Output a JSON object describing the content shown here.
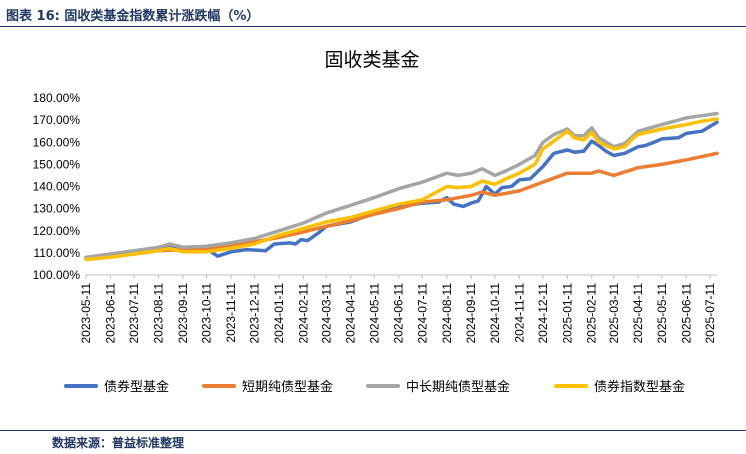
{
  "header": {
    "figure_title": "图表 16:   固收类基金指数累计涨跌幅（%）"
  },
  "footer": {
    "source": "数据来源：普益标准整理"
  },
  "chart_data": {
    "type": "line",
    "title": "固收类基金",
    "xlabel": "",
    "ylabel": "",
    "ylim": [
      100,
      180
    ],
    "y_ticks": [
      "100.00%",
      "110.00%",
      "120.00%",
      "130.00%",
      "140.00%",
      "150.00%",
      "160.00%",
      "170.00%",
      "180.00%"
    ],
    "x_start": "2023-05-11",
    "x_end": "2025-07-20",
    "x_ticks": [
      "2023-05-11",
      "2023-06-11",
      "2023-07-11",
      "2023-08-11",
      "2023-09-11",
      "2023-10-11",
      "2023-11-11",
      "2023-12-11",
      "2024-01-11",
      "2024-02-11",
      "2024-03-11",
      "2024-04-11",
      "2024-05-11",
      "2024-06-11",
      "2024-07-11",
      "2024-08-11",
      "2024-09-11",
      "2024-10-11",
      "2024-11-11",
      "2024-12-11",
      "2025-01-11",
      "2025-02-11",
      "2025-03-11",
      "2025-04-11",
      "2025-05-11",
      "2025-06-11",
      "2025-07-11"
    ],
    "legend_position": "bottom",
    "grid": false,
    "series": [
      {
        "name": "债券型基金",
        "color": "#4472c4",
        "points": [
          [
            "2023-05-11",
            107.5
          ],
          [
            "2023-06-11",
            108.5
          ],
          [
            "2023-07-11",
            109.5
          ],
          [
            "2023-08-11",
            111
          ],
          [
            "2023-08-25",
            113
          ],
          [
            "2023-09-11",
            110.5
          ],
          [
            "2023-10-01",
            111
          ],
          [
            "2023-10-15",
            111
          ],
          [
            "2023-10-25",
            108.5
          ],
          [
            "2023-11-11",
            110.5
          ],
          [
            "2023-12-01",
            111.5
          ],
          [
            "2023-12-25",
            111
          ],
          [
            "2024-01-05",
            114
          ],
          [
            "2024-01-25",
            114.5
          ],
          [
            "2024-02-01",
            114
          ],
          [
            "2024-02-08",
            116
          ],
          [
            "2024-02-16",
            115.5
          ],
          [
            "2024-03-01",
            119
          ],
          [
            "2024-03-11",
            122
          ],
          [
            "2024-04-11",
            124
          ],
          [
            "2024-05-11",
            128
          ],
          [
            "2024-06-11",
            131
          ],
          [
            "2024-07-11",
            132.5
          ],
          [
            "2024-08-01",
            133
          ],
          [
            "2024-08-11",
            135
          ],
          [
            "2024-08-20",
            132
          ],
          [
            "2024-09-01",
            131
          ],
          [
            "2024-09-11",
            132.5
          ],
          [
            "2024-09-20",
            133.5
          ],
          [
            "2024-09-30",
            140
          ],
          [
            "2024-10-11",
            136.5
          ],
          [
            "2024-10-20",
            139.5
          ],
          [
            "2024-11-01",
            140
          ],
          [
            "2024-11-11",
            143
          ],
          [
            "2024-11-25",
            143.5
          ],
          [
            "2024-12-11",
            149
          ],
          [
            "2024-12-25",
            155
          ],
          [
            "2025-01-11",
            156.5
          ],
          [
            "2025-01-20",
            155.5
          ],
          [
            "2025-02-01",
            156
          ],
          [
            "2025-02-11",
            160.5
          ],
          [
            "2025-02-20",
            158.5
          ],
          [
            "2025-03-01",
            156
          ],
          [
            "2025-03-11",
            154
          ],
          [
            "2025-03-25",
            155
          ],
          [
            "2025-04-11",
            158
          ],
          [
            "2025-04-20",
            158.5
          ],
          [
            "2025-05-01",
            160
          ],
          [
            "2025-05-11",
            161.5
          ],
          [
            "2025-06-01",
            162
          ],
          [
            "2025-06-11",
            164
          ],
          [
            "2025-07-01",
            165
          ],
          [
            "2025-07-20",
            169
          ]
        ]
      },
      {
        "name": "短期纯债型基金",
        "color": "#ed7d31",
        "points": [
          [
            "2023-05-11",
            107.5
          ],
          [
            "2023-06-11",
            108.5
          ],
          [
            "2023-07-11",
            109.5
          ],
          [
            "2023-08-11",
            111
          ],
          [
            "2023-09-11",
            111.5
          ],
          [
            "2023-10-11",
            112
          ],
          [
            "2023-11-11",
            113
          ],
          [
            "2023-12-11",
            115
          ],
          [
            "2024-01-11",
            117
          ],
          [
            "2024-02-11",
            119.5
          ],
          [
            "2024-03-11",
            122
          ],
          [
            "2024-04-11",
            124.5
          ],
          [
            "2024-05-11",
            127.5
          ],
          [
            "2024-06-11",
            130
          ],
          [
            "2024-07-11",
            133
          ],
          [
            "2024-08-11",
            134
          ],
          [
            "2024-09-11",
            136
          ],
          [
            "2024-09-25",
            137.5
          ],
          [
            "2024-10-11",
            136
          ],
          [
            "2024-11-11",
            138
          ],
          [
            "2024-12-11",
            142
          ],
          [
            "2025-01-11",
            146
          ],
          [
            "2025-02-11",
            146
          ],
          [
            "2025-02-20",
            147
          ],
          [
            "2025-03-11",
            145
          ],
          [
            "2025-04-11",
            148.5
          ],
          [
            "2025-05-11",
            150
          ],
          [
            "2025-06-11",
            152
          ],
          [
            "2025-07-20",
            155
          ]
        ]
      },
      {
        "name": "中长期纯债型基金",
        "color": "#a5a5a5",
        "points": [
          [
            "2023-05-11",
            108
          ],
          [
            "2023-06-11",
            109.5
          ],
          [
            "2023-07-11",
            111
          ],
          [
            "2023-08-11",
            112.5
          ],
          [
            "2023-08-25",
            114
          ],
          [
            "2023-09-11",
            112.5
          ],
          [
            "2023-10-11",
            113
          ],
          [
            "2023-11-11",
            114.5
          ],
          [
            "2023-12-11",
            116.5
          ],
          [
            "2024-01-11",
            120
          ],
          [
            "2024-02-11",
            123.5
          ],
          [
            "2024-03-11",
            128
          ],
          [
            "2024-04-11",
            131.5
          ],
          [
            "2024-05-11",
            135
          ],
          [
            "2024-06-11",
            139
          ],
          [
            "2024-07-11",
            142
          ],
          [
            "2024-08-11",
            146
          ],
          [
            "2024-08-25",
            145
          ],
          [
            "2024-09-11",
            146
          ],
          [
            "2024-09-25",
            148
          ],
          [
            "2024-10-11",
            145
          ],
          [
            "2024-10-25",
            147
          ],
          [
            "2024-11-11",
            150
          ],
          [
            "2024-12-01",
            154
          ],
          [
            "2024-12-11",
            160
          ],
          [
            "2024-12-25",
            163.5
          ],
          [
            "2025-01-11",
            166
          ],
          [
            "2025-01-20",
            163
          ],
          [
            "2025-02-01",
            163
          ],
          [
            "2025-02-11",
            166.5
          ],
          [
            "2025-02-20",
            162
          ],
          [
            "2025-03-11",
            158
          ],
          [
            "2025-03-25",
            159.5
          ],
          [
            "2025-04-05",
            163
          ],
          [
            "2025-04-11",
            165
          ],
          [
            "2025-05-11",
            168
          ],
          [
            "2025-06-11",
            171
          ],
          [
            "2025-07-01",
            172
          ],
          [
            "2025-07-20",
            173
          ]
        ]
      },
      {
        "name": "债券指数型基金",
        "color": "#ffc000",
        "points": [
          [
            "2023-05-11",
            107
          ],
          [
            "2023-06-11",
            108
          ],
          [
            "2023-07-11",
            109.5
          ],
          [
            "2023-08-11",
            111
          ],
          [
            "2023-08-25",
            112
          ],
          [
            "2023-09-11",
            110.5
          ],
          [
            "2023-10-11",
            110.5
          ],
          [
            "2023-11-11",
            112
          ],
          [
            "2023-12-11",
            114
          ],
          [
            "2024-01-11",
            118
          ],
          [
            "2024-02-11",
            121
          ],
          [
            "2024-03-11",
            124
          ],
          [
            "2024-04-11",
            126
          ],
          [
            "2024-05-11",
            129
          ],
          [
            "2024-06-11",
            132
          ],
          [
            "2024-07-11",
            134
          ],
          [
            "2024-08-11",
            140
          ],
          [
            "2024-08-25",
            139.5
          ],
          [
            "2024-09-11",
            140
          ],
          [
            "2024-09-25",
            142.5
          ],
          [
            "2024-10-11",
            141
          ],
          [
            "2024-10-25",
            143.5
          ],
          [
            "2024-11-11",
            146
          ],
          [
            "2024-12-01",
            150
          ],
          [
            "2024-12-11",
            157
          ],
          [
            "2024-12-25",
            160.5
          ],
          [
            "2025-01-11",
            165
          ],
          [
            "2025-01-20",
            162
          ],
          [
            "2025-02-01",
            161
          ],
          [
            "2025-02-11",
            164.5
          ],
          [
            "2025-02-20",
            160
          ],
          [
            "2025-03-11",
            157
          ],
          [
            "2025-03-25",
            158
          ],
          [
            "2025-04-05",
            162
          ],
          [
            "2025-04-11",
            163.5
          ],
          [
            "2025-05-11",
            166
          ],
          [
            "2025-06-11",
            168
          ],
          [
            "2025-07-01",
            169.5
          ],
          [
            "2025-07-20",
            170.5
          ]
        ]
      }
    ]
  }
}
